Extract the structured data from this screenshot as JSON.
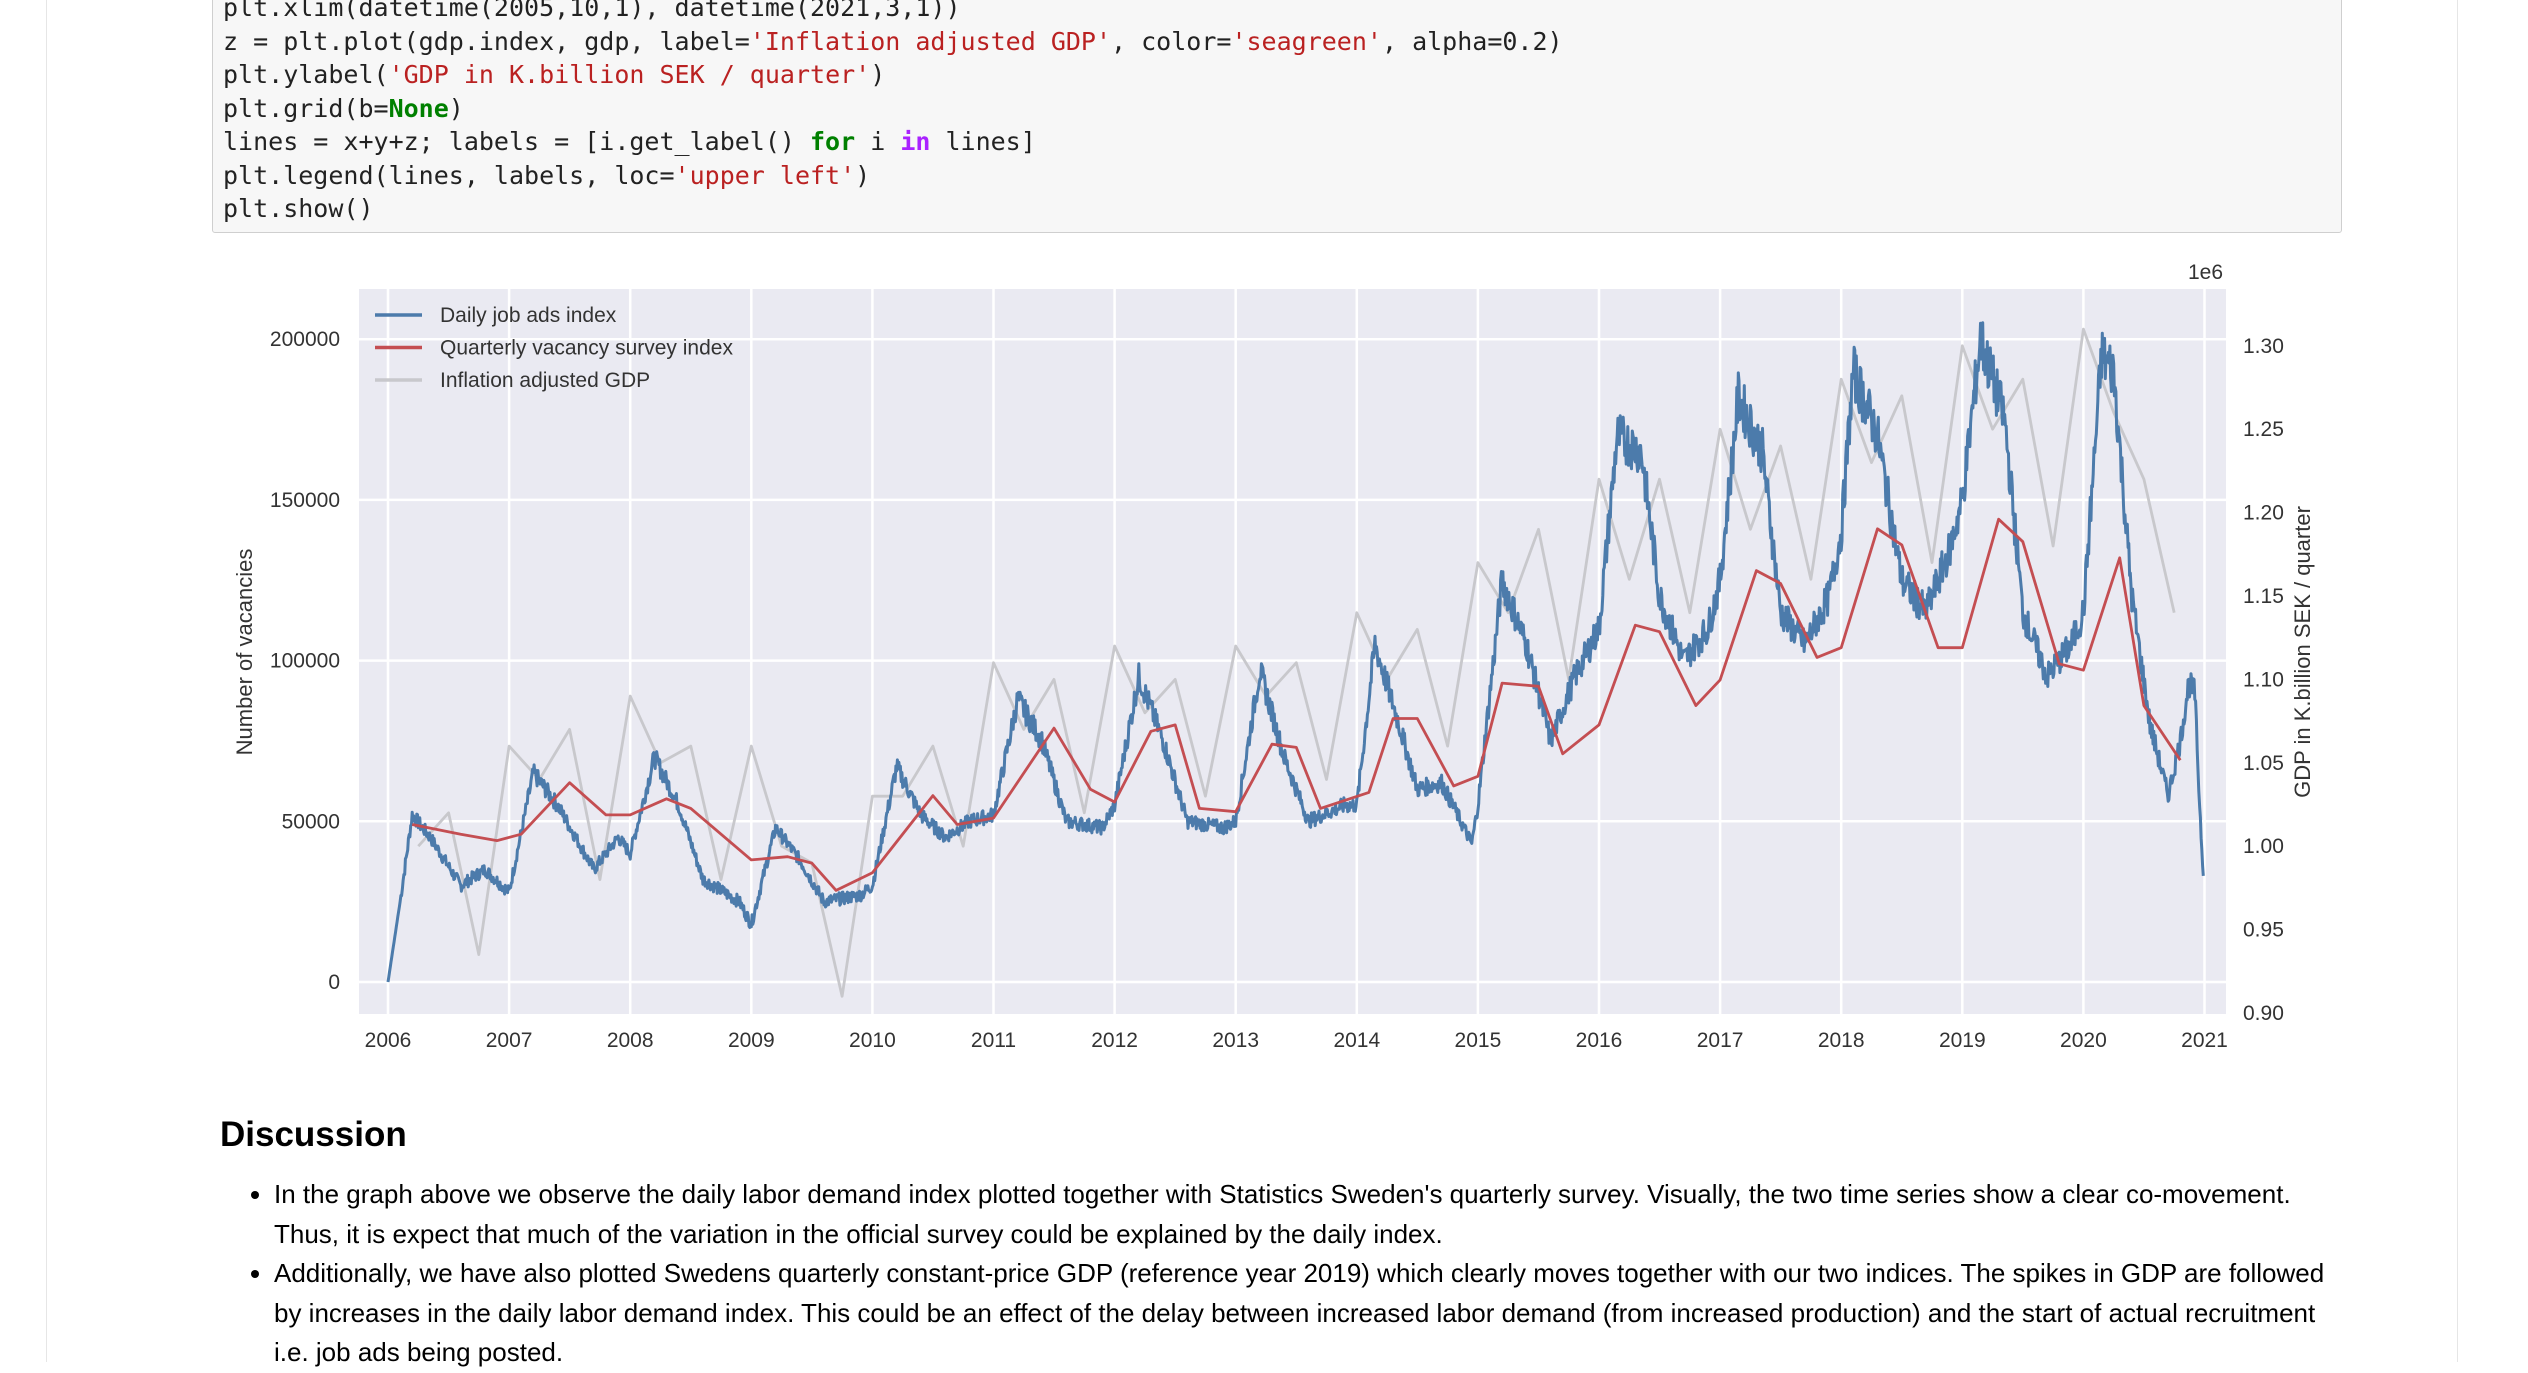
{
  "code": [
    [
      [
        "plt.xlim(datetime(2005,10,1), datetime(2021,3,1))",
        ""
      ]
    ],
    [
      [
        "z = plt.plot(gdp.index, gdp, label=",
        ""
      ],
      [
        "'Inflation adjusted GDP'",
        "str"
      ],
      [
        ", color=",
        ""
      ],
      [
        "'seagreen'",
        "str"
      ],
      [
        ", alpha=0.2)",
        ""
      ]
    ],
    [
      [
        "plt.ylabel(",
        ""
      ],
      [
        "'GDP in K.billion SEK / quarter'",
        "str"
      ],
      [
        ")",
        ""
      ]
    ],
    [
      [
        "plt.grid(b=",
        ""
      ],
      [
        "None",
        "kw"
      ],
      [
        ")",
        ""
      ]
    ],
    [
      [
        "lines = x+y+z; labels = [i.get_label() ",
        ""
      ],
      [
        "for",
        "kw"
      ],
      [
        " i ",
        ""
      ],
      [
        "in",
        "op"
      ],
      [
        " lines]",
        ""
      ]
    ],
    [
      [
        "plt.legend(lines, labels, loc=",
        ""
      ],
      [
        "'upper left'",
        "str"
      ],
      [
        ")",
        ""
      ]
    ],
    [
      [
        "plt.show()",
        ""
      ]
    ]
  ],
  "chart_data": {
    "type": "line",
    "xlabel": "",
    "ylabel": "Number of vacancies",
    "ylabel_right": "GDP in K.billion SEK / quarter",
    "right_offset_label": "1e6",
    "xlim": [
      2005.75,
      2021.17
    ],
    "ylim": [
      -10000,
      210000
    ],
    "ylim_right": [
      0.898,
      1.33
    ],
    "x_ticks": [
      "2006",
      "2007",
      "2008",
      "2009",
      "2010",
      "2011",
      "2012",
      "2013",
      "2014",
      "2015",
      "2016",
      "2017",
      "2018",
      "2019",
      "2020",
      "2021"
    ],
    "y_ticks": [
      "0",
      "50000",
      "100000",
      "150000",
      "200000"
    ],
    "y_ticks_right": [
      "0.90",
      "0.95",
      "1.00",
      "1.05",
      "1.10",
      "1.15",
      "1.20",
      "1.25",
      "1.30"
    ],
    "grid": true,
    "legend_position": "top-left",
    "colors": {
      "background": "#eaeaf2",
      "daily": "#4c7bab",
      "quarterly": "#c44e52",
      "gdp": "#c8c8cc"
    },
    "series": [
      {
        "name": "Daily job ads index",
        "axis": "left",
        "points": [
          [
            2006.0,
            0
          ],
          [
            2006.1,
            25000
          ],
          [
            2006.2,
            52000
          ],
          [
            2006.35,
            45000
          ],
          [
            2006.6,
            30000
          ],
          [
            2006.8,
            35000
          ],
          [
            2007.0,
            28000
          ],
          [
            2007.2,
            65000
          ],
          [
            2007.4,
            55000
          ],
          [
            2007.7,
            35000
          ],
          [
            2007.9,
            45000
          ],
          [
            2008.0,
            40000
          ],
          [
            2008.2,
            70000
          ],
          [
            2008.4,
            55000
          ],
          [
            2008.6,
            32000
          ],
          [
            2008.9,
            25000
          ],
          [
            2009.0,
            18000
          ],
          [
            2009.2,
            48000
          ],
          [
            2009.4,
            38000
          ],
          [
            2009.6,
            25000
          ],
          [
            2009.9,
            27000
          ],
          [
            2010.0,
            30000
          ],
          [
            2010.2,
            67000
          ],
          [
            2010.4,
            52000
          ],
          [
            2010.6,
            45000
          ],
          [
            2010.8,
            50000
          ],
          [
            2011.0,
            52000
          ],
          [
            2011.2,
            88000
          ],
          [
            2011.4,
            75000
          ],
          [
            2011.6,
            50000
          ],
          [
            2011.9,
            48000
          ],
          [
            2012.0,
            55000
          ],
          [
            2012.2,
            95000
          ],
          [
            2012.4,
            75000
          ],
          [
            2012.6,
            50000
          ],
          [
            2012.9,
            48000
          ],
          [
            2013.0,
            50000
          ],
          [
            2013.2,
            97000
          ],
          [
            2013.4,
            70000
          ],
          [
            2013.6,
            50000
          ],
          [
            2013.9,
            55000
          ],
          [
            2014.0,
            55000
          ],
          [
            2014.15,
            105000
          ],
          [
            2014.35,
            80000
          ],
          [
            2014.5,
            60000
          ],
          [
            2014.7,
            62000
          ],
          [
            2014.95,
            43000
          ],
          [
            2015.0,
            55000
          ],
          [
            2015.2,
            125000
          ],
          [
            2015.4,
            105000
          ],
          [
            2015.6,
            75000
          ],
          [
            2015.8,
            95000
          ],
          [
            2016.0,
            110000
          ],
          [
            2016.15,
            170000
          ],
          [
            2016.35,
            165000
          ],
          [
            2016.5,
            120000
          ],
          [
            2016.7,
            100000
          ],
          [
            2016.9,
            110000
          ],
          [
            2017.0,
            125000
          ],
          [
            2017.15,
            182000
          ],
          [
            2017.35,
            165000
          ],
          [
            2017.5,
            115000
          ],
          [
            2017.7,
            105000
          ],
          [
            2017.9,
            120000
          ],
          [
            2018.0,
            140000
          ],
          [
            2018.1,
            190000
          ],
          [
            2018.3,
            170000
          ],
          [
            2018.5,
            125000
          ],
          [
            2018.7,
            115000
          ],
          [
            2018.9,
            135000
          ],
          [
            2019.0,
            150000
          ],
          [
            2019.15,
            200000
          ],
          [
            2019.35,
            175000
          ],
          [
            2019.5,
            115000
          ],
          [
            2019.7,
            95000
          ],
          [
            2019.9,
            105000
          ],
          [
            2020.0,
            115000
          ],
          [
            2020.15,
            195000
          ],
          [
            2020.25,
            190000
          ],
          [
            2020.4,
            120000
          ],
          [
            2020.55,
            80000
          ],
          [
            2020.7,
            58000
          ],
          [
            2020.8,
            75000
          ],
          [
            2020.87,
            93000
          ],
          [
            2020.92,
            90000
          ],
          [
            2020.96,
            55000
          ],
          [
            2020.99,
            33000
          ]
        ]
      },
      {
        "name": "Quarterly vacancy survey index",
        "axis": "left",
        "points": [
          [
            2006.2,
            49000
          ],
          [
            2006.6,
            46000
          ],
          [
            2006.9,
            44000
          ],
          [
            2007.1,
            46000
          ],
          [
            2007.5,
            62000
          ],
          [
            2007.8,
            52000
          ],
          [
            2008.0,
            52000
          ],
          [
            2008.3,
            57000
          ],
          [
            2008.5,
            54000
          ],
          [
            2009.0,
            38000
          ],
          [
            2009.3,
            39000
          ],
          [
            2009.5,
            37000
          ],
          [
            2009.7,
            28500
          ],
          [
            2010.0,
            34000
          ],
          [
            2010.5,
            58000
          ],
          [
            2010.7,
            49000
          ],
          [
            2011.0,
            51000
          ],
          [
            2011.5,
            79000
          ],
          [
            2011.8,
            60000
          ],
          [
            2012.0,
            56000
          ],
          [
            2012.3,
            78000
          ],
          [
            2012.5,
            80000
          ],
          [
            2012.7,
            54000
          ],
          [
            2013.0,
            53000
          ],
          [
            2013.3,
            74000
          ],
          [
            2013.5,
            73000
          ],
          [
            2013.7,
            54000
          ],
          [
            2014.1,
            59000
          ],
          [
            2014.3,
            82000
          ],
          [
            2014.5,
            82000
          ],
          [
            2014.8,
            61000
          ],
          [
            2015.0,
            64000
          ],
          [
            2015.2,
            93000
          ],
          [
            2015.5,
            92000
          ],
          [
            2015.7,
            71000
          ],
          [
            2016.0,
            80000
          ],
          [
            2016.3,
            111000
          ],
          [
            2016.5,
            109000
          ],
          [
            2016.8,
            86000
          ],
          [
            2017.0,
            94000
          ],
          [
            2017.3,
            128000
          ],
          [
            2017.5,
            124000
          ],
          [
            2017.8,
            101000
          ],
          [
            2018.0,
            104000
          ],
          [
            2018.3,
            141000
          ],
          [
            2018.5,
            136000
          ],
          [
            2018.8,
            104000
          ],
          [
            2019.0,
            104000
          ],
          [
            2019.3,
            144000
          ],
          [
            2019.5,
            137000
          ],
          [
            2019.8,
            99000
          ],
          [
            2020.0,
            97000
          ],
          [
            2020.3,
            132000
          ],
          [
            2020.5,
            86000
          ],
          [
            2020.8,
            69000
          ]
        ]
      },
      {
        "name": "Inflation adjusted GDP",
        "axis": "right",
        "points": [
          [
            2006.25,
            1.0
          ],
          [
            2006.5,
            1.02
          ],
          [
            2006.75,
            0.935
          ],
          [
            2007.0,
            1.06
          ],
          [
            2007.25,
            1.04
          ],
          [
            2007.5,
            1.07
          ],
          [
            2007.75,
            0.98
          ],
          [
            2008.0,
            1.09
          ],
          [
            2008.25,
            1.05
          ],
          [
            2008.5,
            1.06
          ],
          [
            2008.75,
            0.98
          ],
          [
            2009.0,
            1.06
          ],
          [
            2009.25,
            1.0
          ],
          [
            2009.5,
            0.99
          ],
          [
            2009.75,
            0.91
          ],
          [
            2010.0,
            1.03
          ],
          [
            2010.25,
            1.03
          ],
          [
            2010.5,
            1.06
          ],
          [
            2010.75,
            1.0
          ],
          [
            2011.0,
            1.11
          ],
          [
            2011.25,
            1.07
          ],
          [
            2011.5,
            1.1
          ],
          [
            2011.75,
            1.02
          ],
          [
            2012.0,
            1.12
          ],
          [
            2012.25,
            1.08
          ],
          [
            2012.5,
            1.1
          ],
          [
            2012.75,
            1.03
          ],
          [
            2013.0,
            1.12
          ],
          [
            2013.25,
            1.09
          ],
          [
            2013.5,
            1.11
          ],
          [
            2013.75,
            1.04
          ],
          [
            2014.0,
            1.14
          ],
          [
            2014.25,
            1.1
          ],
          [
            2014.5,
            1.13
          ],
          [
            2014.75,
            1.06
          ],
          [
            2015.0,
            1.17
          ],
          [
            2015.25,
            1.14
          ],
          [
            2015.5,
            1.19
          ],
          [
            2015.75,
            1.1
          ],
          [
            2016.0,
            1.22
          ],
          [
            2016.25,
            1.16
          ],
          [
            2016.5,
            1.22
          ],
          [
            2016.75,
            1.14
          ],
          [
            2017.0,
            1.25
          ],
          [
            2017.25,
            1.19
          ],
          [
            2017.5,
            1.24
          ],
          [
            2017.75,
            1.16
          ],
          [
            2018.0,
            1.28
          ],
          [
            2018.25,
            1.23
          ],
          [
            2018.5,
            1.27
          ],
          [
            2018.75,
            1.17
          ],
          [
            2019.0,
            1.3
          ],
          [
            2019.25,
            1.25
          ],
          [
            2019.5,
            1.28
          ],
          [
            2019.75,
            1.18
          ],
          [
            2020.0,
            1.31
          ],
          [
            2020.25,
            1.26
          ],
          [
            2020.5,
            1.22
          ],
          [
            2020.75,
            1.14
          ]
        ]
      }
    ]
  },
  "discussion": {
    "heading": "Discussion",
    "bullets": [
      "In the graph above we observe the daily labor demand index plotted together with Statistics Sweden's quarterly survey. Visually, the two time series show a clear co-movement. Thus, it is expect that much of the variation in the official survey could be explained by the daily index.",
      "Additionally, we have also plotted Swedens quarterly constant-price GDP (reference year 2019) which clearly moves together with our two indices. The spikes in GDP are followed by increases in the daily labor demand index. This could be an effect of the delay between increased labor demand (from increased production) and the start of actual recruitment i.e. job ads being posted."
    ]
  }
}
